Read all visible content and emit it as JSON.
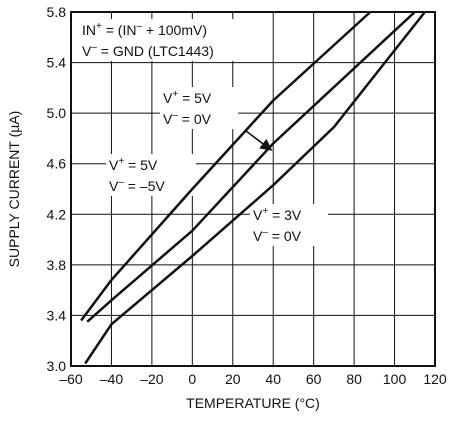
{
  "chart_data": {
    "type": "line",
    "title": "",
    "xlabel": "TEMPERATURE (°C)",
    "ylabel": "SUPPLY CURRENT (µA)",
    "xlim": [
      -60,
      120
    ],
    "ylim": [
      3.0,
      5.8
    ],
    "xticks": [
      -60,
      -40,
      -20,
      0,
      20,
      40,
      60,
      80,
      100,
      120
    ],
    "xtick_labels": [
      "–60",
      "–40",
      "–20",
      "0",
      "20",
      "40",
      "60",
      "80",
      "100",
      "120"
    ],
    "yticks": [
      3.0,
      3.4,
      3.8,
      4.2,
      4.6,
      5.0,
      5.4,
      5.8
    ],
    "ytick_labels": [
      "3.0",
      "3.4",
      "3.8",
      "4.2",
      "4.6",
      "5.0",
      "5.4",
      "5.8"
    ],
    "grid": true,
    "series": [
      {
        "x": [
          -55,
          -40,
          0,
          40,
          88
        ],
        "y": [
          3.36,
          3.68,
          4.4,
          5.1,
          5.8
        ]
      },
      {
        "x": [
          -52,
          -40,
          0,
          40,
          110
        ],
        "y": [
          3.35,
          3.52,
          4.07,
          4.76,
          5.8
        ]
      },
      {
        "x": [
          -53,
          -40,
          0,
          20,
          40,
          70,
          115
        ],
        "y": [
          3.02,
          3.33,
          3.87,
          4.15,
          4.43,
          4.89,
          5.8
        ]
      }
    ],
    "annotations": [
      {
        "lines": [
          [
            {
              "t": "IN"
            },
            {
              "t": "+",
              "sup": true
            },
            {
              "t": " = (IN"
            },
            {
              "t": "–",
              "sup": true
            },
            {
              "t": " + 100mV)"
            }
          ],
          [
            {
              "t": "V"
            },
            {
              "t": "–",
              "sup": true
            },
            {
              "t": " = GND (LTC1443)"
            }
          ]
        ]
      },
      {
        "lines": [
          [
            {
              "t": "V"
            },
            {
              "t": "+",
              "sup": true
            },
            {
              "t": " = 5V"
            }
          ],
          [
            {
              "t": "V"
            },
            {
              "t": "–",
              "sup": true
            },
            {
              "t": " = 0V"
            }
          ]
        ]
      },
      {
        "lines": [
          [
            {
              "t": "V"
            },
            {
              "t": "+",
              "sup": true
            },
            {
              "t": " = 5V"
            }
          ],
          [
            {
              "t": "V"
            },
            {
              "t": "–",
              "sup": true
            },
            {
              "t": " = –5V"
            }
          ]
        ]
      },
      {
        "lines": [
          [
            {
              "t": "V"
            },
            {
              "t": "+",
              "sup": true
            },
            {
              "t": " = 3V"
            }
          ],
          [
            {
              "t": "V"
            },
            {
              "t": "–",
              "sup": true
            },
            {
              "t": " = 0V"
            }
          ]
        ]
      }
    ]
  }
}
